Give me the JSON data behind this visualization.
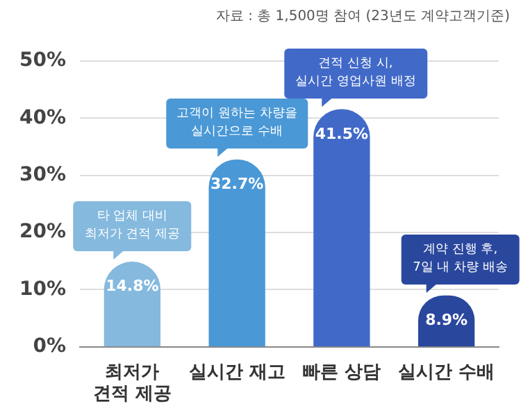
{
  "chart_data": {
    "type": "bar",
    "categories": [
      "최저가\n견적 제공",
      "실시간 재고",
      "빠른 상담",
      "실시간 수배"
    ],
    "values": [
      14.8,
      32.7,
      41.5,
      8.9
    ],
    "colors": [
      "#85b9de",
      "#4a98d6",
      "#4169c8",
      "#2a479e"
    ],
    "value_labels": [
      "14.8%",
      "32.7%",
      "41.5%",
      "8.9%"
    ],
    "ylim": [
      0,
      50
    ],
    "yticks": [
      {
        "value": 0,
        "label": "0%"
      },
      {
        "value": 10,
        "label": "10%"
      },
      {
        "value": 20,
        "label": "20%"
      },
      {
        "value": 30,
        "label": "30%"
      },
      {
        "value": 40,
        "label": "40%"
      },
      {
        "value": 50,
        "label": "50%"
      }
    ],
    "grid": "y",
    "annotations": [
      "자료 : 총 1,500명 참여 (23년도 계약고객기준)",
      {
        "text": "타 업체 대비\n최저가 견적 제공",
        "x": "최저가\n견적 제공",
        "y": 14.8
      },
      {
        "text": "고객이 원하는 차량을\n실시간으로 수배",
        "x": "실시간 재고",
        "y": 32.7
      },
      {
        "text": "견적 신청 시,\n실시간 영업사원 배정",
        "x": "빠른 상담",
        "y": 41.5
      },
      {
        "text": "계약 진행 후,\n7일 내 차량 배송",
        "x": "실시간 수배",
        "y": 8.9
      }
    ]
  }
}
